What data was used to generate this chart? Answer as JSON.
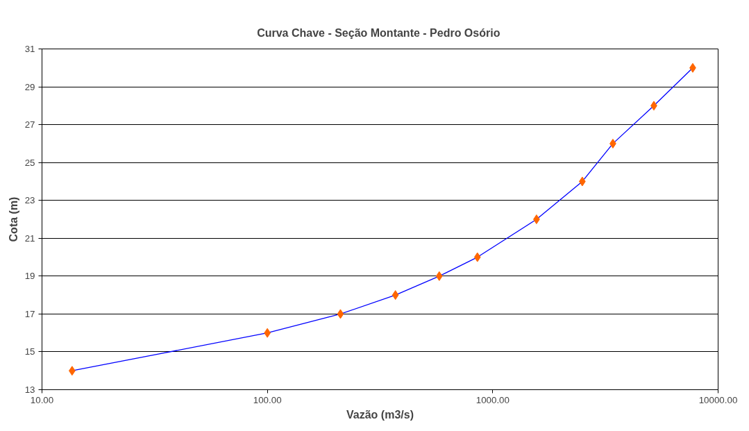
{
  "chart_data": {
    "type": "line",
    "title": "Curva Chave - Seção Montante -  Pedro Osório",
    "xlabel": "Vazão (m3/s)",
    "ylabel": "Cota (m)",
    "log": "x",
    "xlim": [
      10,
      10000
    ],
    "xticks": [
      {
        "value": 10,
        "label": "10.00"
      },
      {
        "value": 100,
        "label": "100.00"
      },
      {
        "value": 1000,
        "label": "1000.00"
      },
      {
        "value": 10000,
        "label": "10000.00"
      }
    ],
    "ylim": [
      13,
      31
    ],
    "yticks": [
      13,
      15,
      17,
      19,
      21,
      23,
      25,
      27,
      29,
      31
    ],
    "grid": "y",
    "line_style": "solid",
    "series": [
      {
        "marker": "none",
        "color": "#0000ff",
        "x": [
          13.6,
          100,
          211,
          370,
          579,
          855,
          1564,
          2497,
          3413,
          5188,
          7718
        ],
        "values": [
          14,
          16,
          17,
          18,
          19,
          20,
          22,
          24,
          26,
          28,
          30
        ]
      },
      {
        "type": "scatter",
        "marker": "diamond",
        "color": "#ff6600",
        "x": [
          13.6,
          100,
          211,
          370,
          579,
          855,
          1564,
          2497,
          3413,
          5188,
          7718
        ],
        "values": [
          14,
          16,
          17,
          18,
          19,
          20,
          22,
          24,
          26,
          28,
          30
        ]
      }
    ]
  }
}
